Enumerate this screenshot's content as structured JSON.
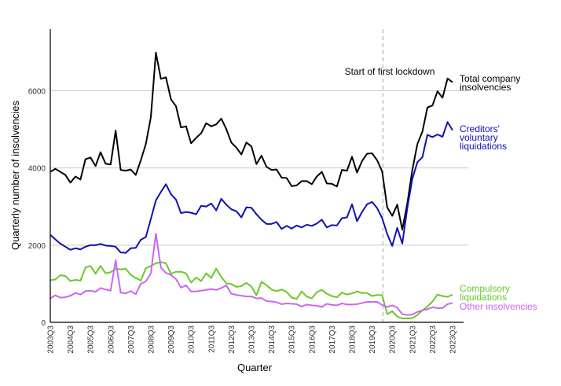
{
  "chart_data": {
    "type": "line",
    "title": "",
    "xlabel": "Quarter",
    "ylabel": "Quarterly number of insolvencies",
    "ylim": [
      0,
      7600
    ],
    "yticks": [
      0,
      2000,
      4000,
      6000
    ],
    "ytick_labels": [
      "0",
      "2000",
      "4000",
      "6000"
    ],
    "grid": "horizontal",
    "x_start": "2003Q3",
    "x_tick_labels": [
      "2003Q3",
      "2004Q3",
      "2005Q3",
      "2006Q3",
      "2007Q3",
      "2008Q3",
      "2009Q3",
      "2010Q3",
      "2011Q3",
      "2012Q3",
      "2013Q3",
      "2014Q3",
      "2015Q3",
      "2016Q3",
      "2017Q3",
      "2018Q3",
      "2019Q3",
      "2020Q3",
      "2021Q3",
      "2022Q3",
      "2023Q3"
    ],
    "annotation": {
      "label": "Start of first lockdown",
      "x": "2020Q1",
      "style": "dashed vertical line"
    },
    "series": [
      {
        "name": "Total company insolvencies",
        "color": "#000000",
        "values": [
          3900,
          3980,
          3900,
          3820,
          3620,
          3780,
          3700,
          4230,
          4270,
          4050,
          4410,
          4110,
          4090,
          4970,
          3950,
          3930,
          3960,
          3820,
          4200,
          4620,
          5320,
          6990,
          6310,
          6350,
          5780,
          5600,
          5050,
          5080,
          4640,
          4780,
          4900,
          5160,
          5080,
          5130,
          5280,
          5010,
          4660,
          4530,
          4350,
          4660,
          4560,
          4100,
          4320,
          4030,
          3950,
          3960,
          3750,
          3740,
          3530,
          3550,
          3660,
          3660,
          3580,
          3780,
          3900,
          3600,
          3590,
          3520,
          3950,
          3930,
          4290,
          3880,
          4180,
          4370,
          4380,
          4200,
          3910,
          2980,
          2760,
          3050,
          2400,
          3080,
          3950,
          4620,
          4940,
          5570,
          5620,
          5990,
          5820,
          6320,
          6220
        ]
      },
      {
        "name": "Creditors' voluntary liquidations",
        "color": "#1010b0",
        "values": [
          2270,
          2150,
          2040,
          1960,
          1880,
          1920,
          1890,
          1960,
          2000,
          2000,
          2030,
          1990,
          1980,
          1960,
          1810,
          1800,
          1920,
          1930,
          2140,
          2210,
          2680,
          3160,
          3380,
          3580,
          3320,
          3180,
          2830,
          2860,
          2840,
          2800,
          3020,
          3000,
          3080,
          2900,
          3200,
          3050,
          2930,
          2880,
          2720,
          2980,
          2970,
          2800,
          2660,
          2550,
          2550,
          2600,
          2420,
          2500,
          2430,
          2510,
          2460,
          2530,
          2500,
          2560,
          2660,
          2460,
          2520,
          2510,
          2700,
          2720,
          3060,
          2620,
          2860,
          3060,
          3120,
          2960,
          2700,
          2290,
          1980,
          2450,
          2040,
          2960,
          3720,
          4150,
          4280,
          4860,
          4800,
          4870,
          4810,
          5190,
          4980
        ]
      },
      {
        "name": "Compulsory liquidations",
        "color": "#6ac829",
        "values": [
          1090,
          1110,
          1220,
          1200,
          1070,
          1100,
          1080,
          1420,
          1460,
          1260,
          1460,
          1270,
          1300,
          1390,
          1370,
          1390,
          1230,
          1150,
          1080,
          1400,
          1460,
          1530,
          1560,
          1530,
          1260,
          1310,
          1310,
          1270,
          1030,
          1160,
          1070,
          1270,
          1150,
          1390,
          1180,
          1010,
          990,
          920,
          940,
          1020,
          930,
          700,
          1050,
          960,
          850,
          810,
          850,
          790,
          640,
          610,
          800,
          670,
          620,
          780,
          840,
          740,
          680,
          650,
          770,
          720,
          750,
          800,
          760,
          760,
          680,
          710,
          700,
          210,
          290,
          150,
          100,
          100,
          110,
          190,
          310,
          410,
          540,
          720,
          680,
          660,
          720
        ]
      },
      {
        "name": "Other insolvencies",
        "color": "#cc66ee",
        "values": [
          620,
          700,
          640,
          650,
          690,
          760,
          720,
          810,
          820,
          790,
          890,
          850,
          820,
          1610,
          770,
          750,
          810,
          730,
          1000,
          1060,
          1270,
          2300,
          1420,
          1280,
          1230,
          1120,
          900,
          960,
          800,
          800,
          820,
          840,
          860,
          840,
          890,
          960,
          740,
          710,
          690,
          670,
          670,
          620,
          630,
          550,
          540,
          520,
          470,
          490,
          480,
          470,
          410,
          460,
          440,
          430,
          400,
          480,
          450,
          440,
          490,
          460,
          460,
          470,
          500,
          530,
          530,
          530,
          450,
          400,
          440,
          380,
          210,
          190,
          200,
          270,
          310,
          340,
          390,
          370,
          370,
          470,
          500
        ]
      }
    ],
    "series_labels": [
      {
        "series": 0,
        "lines": [
          "Total company",
          "insolvencies"
        ]
      },
      {
        "series": 1,
        "lines": [
          "Creditors'",
          "voluntary",
          "liquidations"
        ]
      },
      {
        "series": 2,
        "lines": [
          "Compulsory",
          "liquidations"
        ]
      },
      {
        "series": 3,
        "lines": [
          "Other insolvencies"
        ]
      }
    ]
  }
}
